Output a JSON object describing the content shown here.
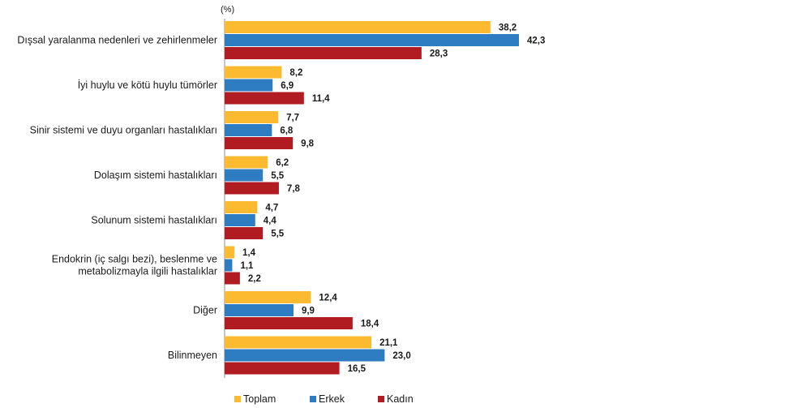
{
  "chart_data": {
    "type": "bar",
    "orientation": "horizontal",
    "unit_label": "(%)",
    "categories": [
      [
        "Dışsal yaralanma nedenleri ve zehirlenmeler"
      ],
      [
        "İyi huylu ve kötü huylu tümörler"
      ],
      [
        "Sinir sistemi ve duyu organları hastalıkları"
      ],
      [
        "Dolaşım sistemi hastalıkları"
      ],
      [
        "Solunum sistemi hastalıkları"
      ],
      [
        "Endokrin (iç salgı bezi), beslenme ve",
        "metabolizmayla ilgili hastalıklar"
      ],
      [
        "Diğer"
      ],
      [
        "Bilinmeyen"
      ]
    ],
    "series": [
      {
        "name": "Toplam",
        "color": "#FBBA2F",
        "values": [
          38.2,
          8.2,
          7.7,
          6.2,
          4.7,
          1.4,
          12.4,
          21.1
        ],
        "labels": [
          "38,2",
          "8,2",
          "7,7",
          "6,2",
          "4,7",
          "1,4",
          "12,4",
          "21,1"
        ]
      },
      {
        "name": "Erkek",
        "color": "#2E7CC2",
        "values": [
          42.3,
          6.9,
          6.8,
          5.5,
          4.4,
          1.1,
          9.9,
          23.0
        ],
        "labels": [
          "42,3",
          "6,9",
          "6,8",
          "5,5",
          "4,4",
          "1,1",
          "9,9",
          "23,0"
        ]
      },
      {
        "name": "Kadın",
        "color": "#B11C22",
        "values": [
          28.3,
          11.4,
          9.8,
          7.8,
          5.5,
          2.2,
          18.4,
          16.5
        ],
        "labels": [
          "28,3",
          "11,4",
          "9,8",
          "7,8",
          "5,5",
          "2,2",
          "18,4",
          "16,5"
        ]
      }
    ],
    "xlim": [
      0,
      45
    ],
    "grid": false,
    "legend_position": "bottom"
  }
}
